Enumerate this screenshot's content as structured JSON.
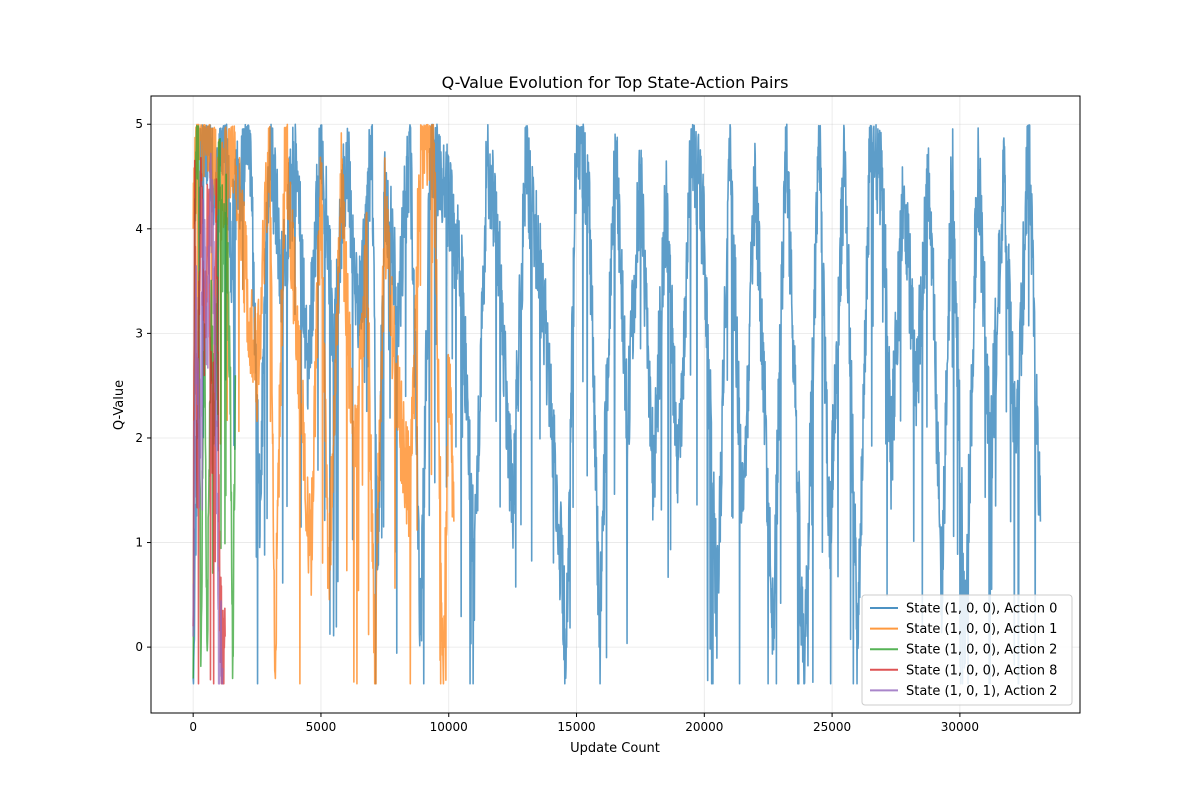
{
  "chart_data": {
    "type": "line",
    "title": "Q-Value Evolution for Top State-Action Pairs",
    "xlabel": "Update Count",
    "ylabel": "Q-Value",
    "xlim": [
      -1650,
      34700
    ],
    "ylim": [
      -0.63,
      5.27
    ],
    "xticks": [
      0,
      5000,
      10000,
      15000,
      20000,
      25000,
      30000
    ],
    "yticks": [
      0,
      1,
      2,
      3,
      4,
      5
    ],
    "grid": true,
    "legend_position": "lower-right",
    "series": [
      {
        "name": "State (1, 0, 0), Action 0",
        "color": "#1f77b4",
        "x_range": [
          0,
          33150
        ],
        "points": [
          [
            0,
            -0.3
          ],
          [
            150,
            2.0
          ],
          [
            300,
            4.9
          ],
          [
            600,
            5.0
          ],
          [
            900,
            4.2
          ],
          [
            1200,
            5.0
          ],
          [
            1500,
            3.8
          ],
          [
            1800,
            4.5
          ],
          [
            2200,
            4.9
          ],
          [
            2600,
            1.3
          ],
          [
            3000,
            4.9
          ],
          [
            3500,
            3.5
          ],
          [
            4000,
            4.7
          ],
          [
            4500,
            2.6
          ],
          [
            5000,
            4.9
          ],
          [
            5500,
            2.9
          ],
          [
            6000,
            4.7
          ],
          [
            6500,
            3.2
          ],
          [
            7000,
            4.9
          ],
          [
            7200,
            0.6
          ],
          [
            7500,
            4.5
          ],
          [
            8000,
            3.2
          ],
          [
            8500,
            4.8
          ],
          [
            8900,
            0.1
          ],
          [
            9300,
            4.9
          ],
          [
            10000,
            4.3
          ],
          [
            10500,
            3.5
          ],
          [
            11000,
            0.7
          ],
          [
            11500,
            4.7
          ],
          [
            12000,
            3.6
          ],
          [
            12500,
            1.3
          ],
          [
            13000,
            4.6
          ],
          [
            13500,
            3.8
          ],
          [
            14000,
            2.4
          ],
          [
            14600,
            0.0
          ],
          [
            15000,
            5.0
          ],
          [
            15500,
            4.2
          ],
          [
            15900,
            0.1
          ],
          [
            16500,
            4.9
          ],
          [
            17000,
            2.2
          ],
          [
            17500,
            4.5
          ],
          [
            18000,
            1.6
          ],
          [
            18500,
            4.2
          ],
          [
            19000,
            1.6
          ],
          [
            19500,
            5.0
          ],
          [
            20000,
            3.9
          ],
          [
            20500,
            0.3
          ],
          [
            21000,
            4.8
          ],
          [
            21500,
            1.2
          ],
          [
            22000,
            4.5
          ],
          [
            22700,
            0.2
          ],
          [
            23200,
            5.0
          ],
          [
            23900,
            -0.3
          ],
          [
            24500,
            5.0
          ],
          [
            24900,
            1.0
          ],
          [
            25500,
            4.8
          ],
          [
            26000,
            -0.1
          ],
          [
            26500,
            5.0
          ],
          [
            27000,
            4.3
          ],
          [
            27300,
            1.8
          ],
          [
            27800,
            4.4
          ],
          [
            28300,
            2.5
          ],
          [
            28800,
            4.6
          ],
          [
            29300,
            0.5
          ],
          [
            29700,
            4.8
          ],
          [
            30200,
            0.0
          ],
          [
            30700,
            4.7
          ],
          [
            31200,
            1.8
          ],
          [
            31700,
            4.5
          ],
          [
            32200,
            1.8
          ],
          [
            32700,
            4.9
          ],
          [
            33150,
            1.2
          ]
        ]
      },
      {
        "name": "State (1, 0, 0), Action 1",
        "color": "#ff7f0e",
        "x_range": [
          0,
          10200
        ],
        "points": [
          [
            0,
            4.0
          ],
          [
            150,
            5.0
          ],
          [
            600,
            5.0
          ],
          [
            1000,
            4.3
          ],
          [
            1500,
            4.9
          ],
          [
            2000,
            3.7
          ],
          [
            2500,
            2.6
          ],
          [
            3000,
            4.9
          ],
          [
            3200,
            -0.2
          ],
          [
            3600,
            4.9
          ],
          [
            4100,
            2.9
          ],
          [
            4600,
            0.8
          ],
          [
            5000,
            4.5
          ],
          [
            5300,
            0.6
          ],
          [
            5800,
            4.4
          ],
          [
            6300,
            1.7
          ],
          [
            6800,
            3.8
          ],
          [
            7100,
            -0.1
          ],
          [
            7500,
            4.2
          ],
          [
            8000,
            2.3
          ],
          [
            8500,
            1.4
          ],
          [
            8900,
            4.9
          ],
          [
            9400,
            5.0
          ],
          [
            9800,
            -0.3
          ],
          [
            10000,
            2.8
          ],
          [
            10200,
            1.2
          ]
        ]
      },
      {
        "name": "State (1, 0, 0), Action 2",
        "color": "#2ca02c",
        "x_range": [
          0,
          1650
        ],
        "points": [
          [
            0,
            -0.3
          ],
          [
            80,
            4.3
          ],
          [
            200,
            4.9
          ],
          [
            300,
            0.0
          ],
          [
            450,
            3.0
          ],
          [
            550,
            -0.1
          ],
          [
            700,
            3.3
          ],
          [
            850,
            2.0
          ],
          [
            1000,
            4.6
          ],
          [
            1150,
            3.9
          ],
          [
            1300,
            4.0
          ],
          [
            1450,
            2.4
          ],
          [
            1550,
            -0.3
          ],
          [
            1650,
            2.6
          ]
        ]
      },
      {
        "name": "State (1, 0, 0), Action 8",
        "color": "#d62728",
        "x_range": [
          0,
          1250
        ],
        "points": [
          [
            0,
            0.2
          ],
          [
            60,
            4.2
          ],
          [
            150,
            1.5
          ],
          [
            300,
            4.4
          ],
          [
            450,
            3.0
          ],
          [
            600,
            4.3
          ],
          [
            750,
            1.5
          ],
          [
            900,
            4.4
          ],
          [
            1050,
            0.4
          ],
          [
            1200,
            -0.2
          ],
          [
            1250,
            0.1
          ]
        ]
      },
      {
        "name": "State (1, 0, 1), Action 2",
        "color": "#9467bd",
        "x_range": [
          0,
          1150
        ],
        "points": [
          [
            0,
            0.1
          ],
          [
            100,
            3.3
          ],
          [
            250,
            1.5
          ],
          [
            400,
            4.2
          ],
          [
            550,
            2.6
          ],
          [
            700,
            4.6
          ],
          [
            850,
            3.1
          ],
          [
            1000,
            0.1
          ],
          [
            1150,
            -0.2
          ]
        ]
      }
    ]
  }
}
